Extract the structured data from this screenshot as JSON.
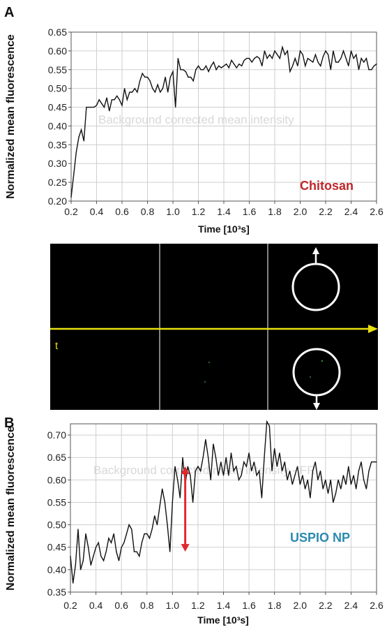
{
  "panels": {
    "a_letter": "A",
    "b_letter": "B"
  },
  "colors": {
    "trace": "#111111",
    "grid": "#cfcfcf",
    "chitosan_label": "#c0262a",
    "uspio_label": "#2b8ab0",
    "arrow_red": "#e0282f",
    "timeline_yellow": "#e8e010",
    "image_bg": "#000000",
    "roi_white": "#ffffff"
  },
  "image_strip": {
    "time_marker": "t"
  },
  "chart_data": [
    {
      "type": "line",
      "panel": "A",
      "xlabel": "Time [10³s]",
      "ylabel": "Normalized mean fluorescence",
      "watermark": "Background corrected mean intensity",
      "sample_label": "Chitosan",
      "xlim": [
        0.2,
        2.6
      ],
      "ylim": [
        0.2,
        0.65
      ],
      "xticks": [
        "0.2",
        "0.4",
        "0.6",
        "0.8",
        "1.0",
        "1.2",
        "1.4",
        "1.6",
        "1.8",
        "2.0",
        "2.2",
        "2.4",
        "2.6"
      ],
      "yticks": [
        "0.20",
        "0.25",
        "0.30",
        "0.35",
        "0.40",
        "0.45",
        "0.50",
        "0.55",
        "0.60",
        "0.65"
      ],
      "x": [
        0.2,
        0.22,
        0.24,
        0.26,
        0.28,
        0.3,
        0.32,
        0.34,
        0.36,
        0.38,
        0.4,
        0.42,
        0.44,
        0.46,
        0.48,
        0.5,
        0.52,
        0.54,
        0.56,
        0.58,
        0.6,
        0.62,
        0.64,
        0.66,
        0.68,
        0.7,
        0.72,
        0.74,
        0.76,
        0.78,
        0.8,
        0.82,
        0.84,
        0.86,
        0.88,
        0.9,
        0.92,
        0.94,
        0.96,
        0.98,
        1.0,
        1.02,
        1.04,
        1.06,
        1.08,
        1.1,
        1.12,
        1.14,
        1.16,
        1.18,
        1.2,
        1.22,
        1.24,
        1.26,
        1.28,
        1.3,
        1.32,
        1.34,
        1.36,
        1.38,
        1.4,
        1.42,
        1.44,
        1.46,
        1.48,
        1.5,
        1.52,
        1.54,
        1.56,
        1.58,
        1.6,
        1.62,
        1.64,
        1.66,
        1.68,
        1.7,
        1.72,
        1.74,
        1.76,
        1.78,
        1.8,
        1.82,
        1.84,
        1.86,
        1.88,
        1.9,
        1.92,
        1.94,
        1.96,
        1.98,
        2.0,
        2.02,
        2.04,
        2.06,
        2.08,
        2.1,
        2.12,
        2.14,
        2.16,
        2.18,
        2.2,
        2.22,
        2.24,
        2.26,
        2.28,
        2.3,
        2.32,
        2.34,
        2.36,
        2.38,
        2.4,
        2.42,
        2.44,
        2.46,
        2.48,
        2.5,
        2.52,
        2.54,
        2.56,
        2.58,
        2.6
      ],
      "y": [
        0.21,
        0.27,
        0.33,
        0.37,
        0.39,
        0.36,
        0.45,
        0.45,
        0.45,
        0.45,
        0.455,
        0.47,
        0.46,
        0.45,
        0.475,
        0.44,
        0.47,
        0.47,
        0.48,
        0.47,
        0.455,
        0.5,
        0.47,
        0.49,
        0.49,
        0.5,
        0.49,
        0.52,
        0.54,
        0.53,
        0.53,
        0.52,
        0.5,
        0.49,
        0.51,
        0.49,
        0.5,
        0.53,
        0.49,
        0.53,
        0.545,
        0.45,
        0.58,
        0.55,
        0.55,
        0.545,
        0.53,
        0.53,
        0.52,
        0.55,
        0.56,
        0.55,
        0.55,
        0.56,
        0.545,
        0.56,
        0.57,
        0.55,
        0.56,
        0.555,
        0.56,
        0.565,
        0.555,
        0.575,
        0.565,
        0.555,
        0.565,
        0.56,
        0.575,
        0.58,
        0.58,
        0.57,
        0.58,
        0.585,
        0.58,
        0.56,
        0.6,
        0.58,
        0.59,
        0.58,
        0.6,
        0.59,
        0.58,
        0.61,
        0.59,
        0.6,
        0.545,
        0.56,
        0.58,
        0.56,
        0.6,
        0.59,
        0.56,
        0.58,
        0.575,
        0.57,
        0.59,
        0.57,
        0.56,
        0.585,
        0.6,
        0.59,
        0.55,
        0.6,
        0.57,
        0.57,
        0.58,
        0.6,
        0.58,
        0.56,
        0.6,
        0.58,
        0.59,
        0.55,
        0.58,
        0.57,
        0.58,
        0.55,
        0.55,
        0.56,
        0.565
      ]
    },
    {
      "type": "line",
      "panel": "B",
      "xlabel": "Time [10³s]",
      "ylabel": "Normalized mean fluorescence",
      "watermark": "Background corrected mean intensity - FR",
      "sample_label": "USPIO NP",
      "xlim": [
        0.2,
        2.6
      ],
      "ylim": [
        0.35,
        0.725
      ],
      "xticks": [
        "0.2",
        "0.4",
        "0.6",
        "0.8",
        "1.0",
        "1.2",
        "1.4",
        "1.6",
        "1.8",
        "2.0",
        "2.2",
        "2.4",
        "2.6"
      ],
      "yticks": [
        "0.35",
        "0.40",
        "0.45",
        "0.50",
        "0.55",
        "0.60",
        "0.65",
        "0.70"
      ],
      "annotation": "double-headed arrow at t = 1.1 spanning 0.44 to 0.63",
      "arrow": {
        "x": 1.1,
        "y_from": 0.44,
        "y_to": 0.63
      },
      "x": [
        0.2,
        0.22,
        0.24,
        0.26,
        0.28,
        0.3,
        0.32,
        0.34,
        0.36,
        0.38,
        0.4,
        0.42,
        0.44,
        0.46,
        0.48,
        0.5,
        0.52,
        0.54,
        0.56,
        0.58,
        0.6,
        0.62,
        0.64,
        0.66,
        0.68,
        0.7,
        0.72,
        0.74,
        0.76,
        0.78,
        0.8,
        0.82,
        0.84,
        0.86,
        0.88,
        0.9,
        0.92,
        0.94,
        0.96,
        0.98,
        1.0,
        1.02,
        1.04,
        1.06,
        1.08,
        1.1,
        1.12,
        1.14,
        1.16,
        1.18,
        1.2,
        1.22,
        1.24,
        1.26,
        1.28,
        1.3,
        1.32,
        1.34,
        1.36,
        1.38,
        1.4,
        1.42,
        1.44,
        1.46,
        1.48,
        1.5,
        1.52,
        1.54,
        1.56,
        1.58,
        1.6,
        1.62,
        1.64,
        1.66,
        1.68,
        1.7,
        1.72,
        1.74,
        1.76,
        1.78,
        1.8,
        1.82,
        1.84,
        1.86,
        1.88,
        1.9,
        1.92,
        1.94,
        1.96,
        1.98,
        2.0,
        2.02,
        2.04,
        2.06,
        2.08,
        2.1,
        2.12,
        2.14,
        2.16,
        2.18,
        2.2,
        2.22,
        2.24,
        2.26,
        2.28,
        2.3,
        2.32,
        2.34,
        2.36,
        2.38,
        2.4,
        2.42,
        2.44,
        2.46,
        2.48,
        2.5,
        2.52,
        2.54,
        2.56,
        2.58,
        2.6
      ],
      "y": [
        0.43,
        0.37,
        0.41,
        0.49,
        0.4,
        0.42,
        0.48,
        0.45,
        0.41,
        0.43,
        0.45,
        0.46,
        0.43,
        0.42,
        0.44,
        0.47,
        0.46,
        0.48,
        0.44,
        0.42,
        0.45,
        0.46,
        0.48,
        0.5,
        0.49,
        0.44,
        0.44,
        0.43,
        0.46,
        0.48,
        0.48,
        0.47,
        0.49,
        0.52,
        0.5,
        0.54,
        0.58,
        0.55,
        0.5,
        0.44,
        0.55,
        0.63,
        0.6,
        0.56,
        0.65,
        0.59,
        0.63,
        0.61,
        0.55,
        0.62,
        0.63,
        0.62,
        0.65,
        0.69,
        0.65,
        0.6,
        0.68,
        0.65,
        0.61,
        0.64,
        0.61,
        0.65,
        0.61,
        0.66,
        0.62,
        0.63,
        0.6,
        0.61,
        0.64,
        0.63,
        0.66,
        0.62,
        0.64,
        0.61,
        0.62,
        0.56,
        0.65,
        0.73,
        0.72,
        0.62,
        0.67,
        0.63,
        0.66,
        0.62,
        0.64,
        0.6,
        0.62,
        0.59,
        0.61,
        0.63,
        0.59,
        0.61,
        0.58,
        0.6,
        0.56,
        0.62,
        0.64,
        0.6,
        0.62,
        0.58,
        0.6,
        0.57,
        0.6,
        0.55,
        0.57,
        0.6,
        0.58,
        0.61,
        0.59,
        0.63,
        0.59,
        0.61,
        0.58,
        0.62,
        0.64,
        0.6,
        0.58,
        0.62,
        0.64,
        0.64,
        0.64
      ]
    }
  ]
}
